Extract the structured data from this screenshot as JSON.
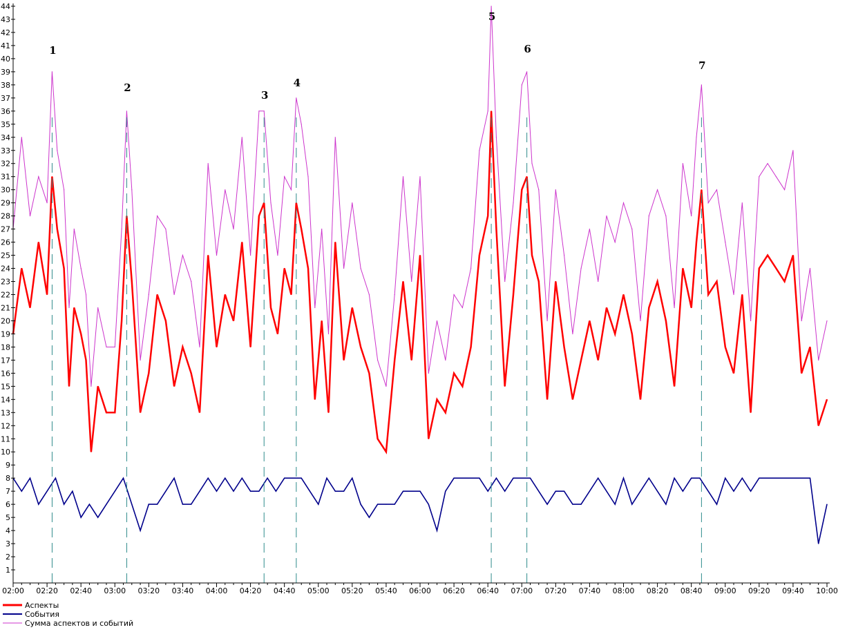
{
  "chart_data": {
    "type": "line",
    "title": "",
    "xlabel": "",
    "ylabel": "",
    "ylim": [
      0,
      44
    ],
    "xlim": [
      "02:00",
      "10:00"
    ],
    "grid": false,
    "legend_position": "bottom-left",
    "y_ticks": [
      "1",
      "2",
      "3",
      "4",
      "5",
      "6",
      "7",
      "8",
      "9",
      "10",
      "11",
      "12",
      "13",
      "14",
      "15",
      "16",
      "17",
      "18",
      "19",
      "20",
      "21",
      "22",
      "23",
      "24",
      "25",
      "26",
      "27",
      "28",
      "29",
      "30",
      "31",
      "32",
      "33",
      "34",
      "35",
      "36",
      "37",
      "38",
      "39",
      "40",
      "41",
      "42",
      "43",
      "44"
    ],
    "x_ticks": [
      "02:00",
      "02:20",
      "02:40",
      "03:00",
      "03:20",
      "03:40",
      "04:00",
      "04:20",
      "04:40",
      "05:00",
      "05:20",
      "05:40",
      "06:00",
      "06:20",
      "06:40",
      "07:00",
      "07:20",
      "07:40",
      "08:00",
      "08:20",
      "08:40",
      "09:00",
      "09:20",
      "09:40",
      "10:00"
    ],
    "markers": [
      {
        "label": "1",
        "time": "02:23"
      },
      {
        "label": "2",
        "time": "03:07"
      },
      {
        "label": "3",
        "time": "04:28"
      },
      {
        "label": "4",
        "time": "04:47"
      },
      {
        "label": "5",
        "time": "06:42"
      },
      {
        "label": "6",
        "time": "07:03"
      },
      {
        "label": "7",
        "time": "08:46"
      }
    ],
    "series": [
      {
        "name": "Аспекты",
        "color": "#ff0000",
        "x": [
          "02:00",
          "02:05",
          "02:10",
          "02:15",
          "02:20",
          "02:23",
          "02:26",
          "02:30",
          "02:33",
          "02:36",
          "02:40",
          "02:43",
          "02:46",
          "02:50",
          "02:55",
          "03:00",
          "03:04",
          "03:07",
          "03:10",
          "03:15",
          "03:20",
          "03:25",
          "03:30",
          "03:35",
          "03:40",
          "03:45",
          "03:50",
          "03:55",
          "04:00",
          "04:05",
          "04:10",
          "04:15",
          "04:20",
          "04:25",
          "04:28",
          "04:32",
          "04:36",
          "04:40",
          "04:44",
          "04:47",
          "04:50",
          "04:54",
          "04:58",
          "05:02",
          "05:06",
          "05:10",
          "05:15",
          "05:20",
          "05:25",
          "05:30",
          "05:35",
          "05:40",
          "05:45",
          "05:50",
          "05:55",
          "06:00",
          "06:05",
          "06:10",
          "06:15",
          "06:20",
          "06:25",
          "06:30",
          "06:35",
          "06:40",
          "06:42",
          "06:45",
          "06:50",
          "06:55",
          "07:00",
          "07:03",
          "07:06",
          "07:10",
          "07:15",
          "07:20",
          "07:25",
          "07:30",
          "07:35",
          "07:40",
          "07:45",
          "07:50",
          "07:55",
          "08:00",
          "08:05",
          "08:10",
          "08:15",
          "08:20",
          "08:25",
          "08:30",
          "08:35",
          "08:40",
          "08:43",
          "08:46",
          "08:50",
          "08:55",
          "09:00",
          "09:05",
          "09:10",
          "09:15",
          "09:20",
          "09:25",
          "09:30",
          "09:35",
          "09:40",
          "09:45",
          "09:50",
          "09:55",
          "10:00"
        ],
        "y": [
          19,
          24,
          21,
          26,
          22,
          31,
          27,
          24,
          15,
          21,
          19,
          17,
          10,
          15,
          13,
          13,
          20,
          28,
          23,
          13,
          16,
          22,
          20,
          15,
          18,
          16,
          13,
          25,
          18,
          22,
          20,
          26,
          18,
          28,
          29,
          21,
          19,
          24,
          22,
          29,
          27,
          24,
          14,
          20,
          13,
          26,
          17,
          21,
          18,
          16,
          11,
          10,
          17,
          23,
          17,
          25,
          11,
          14,
          13,
          16,
          15,
          18,
          25,
          28,
          36,
          27,
          15,
          22,
          30,
          31,
          25,
          23,
          14,
          23,
          18,
          14,
          17,
          20,
          17,
          21,
          19,
          22,
          19,
          14,
          21,
          23,
          20,
          15,
          24,
          21,
          26,
          30,
          22,
          23,
          18,
          16,
          22,
          13,
          24,
          25,
          24,
          23,
          25,
          16,
          18,
          12,
          14
        ]
      },
      {
        "name": "События",
        "color": "#00008b",
        "x": [
          "02:00",
          "02:05",
          "02:10",
          "02:15",
          "02:20",
          "02:25",
          "02:30",
          "02:35",
          "02:40",
          "02:45",
          "02:50",
          "02:55",
          "03:00",
          "03:05",
          "03:10",
          "03:15",
          "03:20",
          "03:25",
          "03:30",
          "03:35",
          "03:40",
          "03:45",
          "03:50",
          "03:55",
          "04:00",
          "04:05",
          "04:10",
          "04:15",
          "04:20",
          "04:25",
          "04:30",
          "04:35",
          "04:40",
          "04:45",
          "04:50",
          "04:55",
          "05:00",
          "05:05",
          "05:10",
          "05:15",
          "05:20",
          "05:25",
          "05:30",
          "05:35",
          "05:40",
          "05:45",
          "05:50",
          "05:55",
          "06:00",
          "06:05",
          "06:10",
          "06:15",
          "06:20",
          "06:25",
          "06:30",
          "06:35",
          "06:40",
          "06:45",
          "06:50",
          "06:55",
          "07:00",
          "07:05",
          "07:10",
          "07:15",
          "07:20",
          "07:25",
          "07:30",
          "07:35",
          "07:40",
          "07:45",
          "07:50",
          "07:55",
          "08:00",
          "08:05",
          "08:10",
          "08:15",
          "08:20",
          "08:25",
          "08:30",
          "08:35",
          "08:40",
          "08:45",
          "08:50",
          "08:55",
          "09:00",
          "09:05",
          "09:10",
          "09:15",
          "09:20",
          "09:25",
          "09:30",
          "09:35",
          "09:40",
          "09:45",
          "09:50",
          "09:55",
          "10:00"
        ],
        "y": [
          8,
          7,
          8,
          6,
          7,
          8,
          6,
          7,
          5,
          6,
          5,
          6,
          7,
          8,
          6,
          4,
          6,
          6,
          7,
          8,
          6,
          6,
          7,
          8,
          7,
          8,
          7,
          8,
          7,
          7,
          8,
          7,
          8,
          8,
          8,
          7,
          6,
          8,
          7,
          7,
          8,
          6,
          5,
          6,
          6,
          6,
          7,
          7,
          7,
          6,
          4,
          7,
          8,
          8,
          8,
          8,
          7,
          8,
          7,
          8,
          8,
          8,
          7,
          6,
          7,
          7,
          6,
          6,
          7,
          8,
          7,
          6,
          8,
          6,
          7,
          8,
          7,
          6,
          8,
          7,
          8,
          8,
          7,
          6,
          8,
          7,
          8,
          7,
          8,
          8,
          8,
          8,
          8,
          8,
          8,
          3,
          6
        ]
      },
      {
        "name": "Сумма аспектов и событий",
        "color": "#cc33cc",
        "x": [
          "02:00",
          "02:05",
          "02:10",
          "02:15",
          "02:20",
          "02:23",
          "02:26",
          "02:30",
          "02:33",
          "02:36",
          "02:40",
          "02:43",
          "02:46",
          "02:50",
          "02:55",
          "03:00",
          "03:04",
          "03:07",
          "03:10",
          "03:15",
          "03:20",
          "03:25",
          "03:30",
          "03:35",
          "03:40",
          "03:45",
          "03:50",
          "03:55",
          "04:00",
          "04:05",
          "04:10",
          "04:15",
          "04:20",
          "04:25",
          "04:28",
          "04:32",
          "04:36",
          "04:40",
          "04:44",
          "04:47",
          "04:50",
          "04:54",
          "04:58",
          "05:02",
          "05:06",
          "05:10",
          "05:15",
          "05:20",
          "05:25",
          "05:30",
          "05:35",
          "05:40",
          "05:45",
          "05:50",
          "05:55",
          "06:00",
          "06:05",
          "06:10",
          "06:15",
          "06:20",
          "06:25",
          "06:30",
          "06:35",
          "06:40",
          "06:42",
          "06:45",
          "06:50",
          "06:55",
          "07:00",
          "07:03",
          "07:06",
          "07:10",
          "07:15",
          "07:20",
          "07:25",
          "07:30",
          "07:35",
          "07:40",
          "07:45",
          "07:50",
          "07:55",
          "08:00",
          "08:05",
          "08:10",
          "08:15",
          "08:20",
          "08:25",
          "08:30",
          "08:35",
          "08:40",
          "08:43",
          "08:46",
          "08:50",
          "08:55",
          "09:00",
          "09:05",
          "09:10",
          "09:15",
          "09:20",
          "09:25",
          "09:30",
          "09:35",
          "09:40",
          "09:45",
          "09:50",
          "09:55",
          "10:00"
        ],
        "y": [
          27,
          34,
          28,
          31,
          29,
          39,
          33,
          30,
          21,
          27,
          24,
          22,
          15,
          21,
          18,
          18,
          27,
          36,
          30,
          17,
          22,
          28,
          27,
          22,
          25,
          23,
          18,
          32,
          25,
          30,
          27,
          34,
          25,
          36,
          36,
          29,
          25,
          31,
          30,
          37,
          35,
          31,
          21,
          27,
          19,
          34,
          24,
          29,
          24,
          22,
          17,
          15,
          22,
          31,
          23,
          31,
          16,
          20,
          17,
          22,
          21,
          24,
          33,
          36,
          44,
          34,
          23,
          29,
          38,
          39,
          32,
          30,
          20,
          30,
          25,
          19,
          24,
          27,
          23,
          28,
          26,
          29,
          27,
          20,
          28,
          30,
          28,
          21,
          32,
          28,
          34,
          38,
          29,
          30,
          26,
          22,
          29,
          20,
          31,
          32,
          31,
          30,
          33,
          20,
          24,
          17,
          20
        ]
      }
    ]
  }
}
